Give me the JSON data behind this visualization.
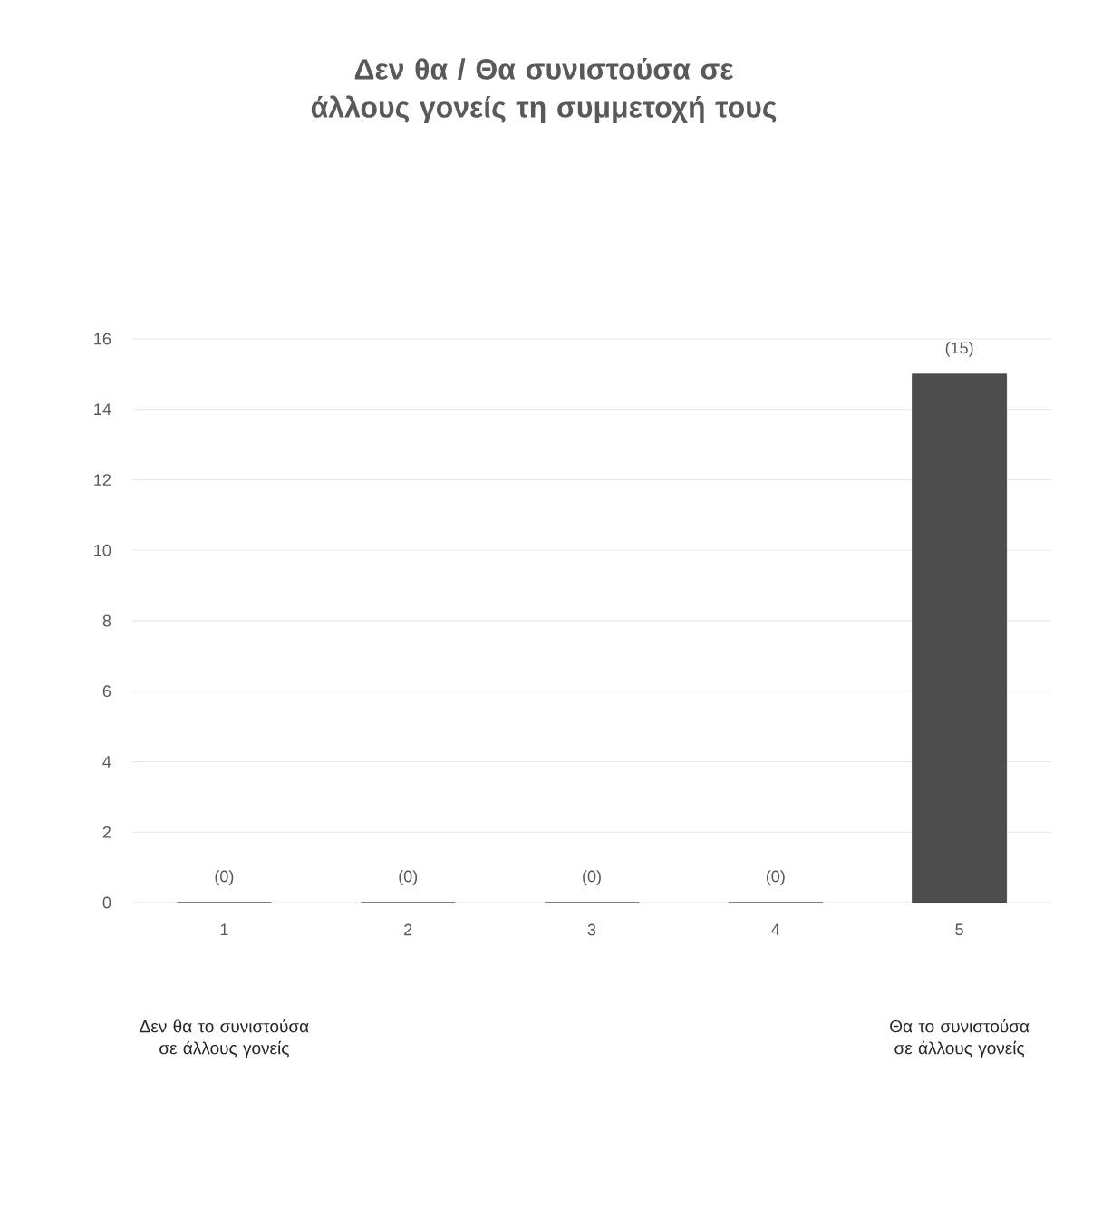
{
  "chart_data": {
    "type": "bar",
    "title": "Δεν θα / Θα συνιστούσα σε άλλους γονείς τη συμμετοχή τους",
    "categories": [
      "1",
      "2",
      "3",
      "4",
      "5"
    ],
    "values": [
      0,
      0,
      0,
      0,
      15
    ],
    "value_labels": [
      "(0)",
      "(0)",
      "(0)",
      "(0)",
      "(15)"
    ],
    "color": "#4d4d4d",
    "ylim": [
      0,
      16
    ],
    "yticks": [
      0,
      2,
      4,
      6,
      8,
      10,
      12,
      14,
      16
    ],
    "grid": "y",
    "annotations": [
      "Δεν θα το συνιστούσα σε άλλους γονείς",
      "Θα το συνιστούσα σε άλλους γονείς"
    ]
  }
}
